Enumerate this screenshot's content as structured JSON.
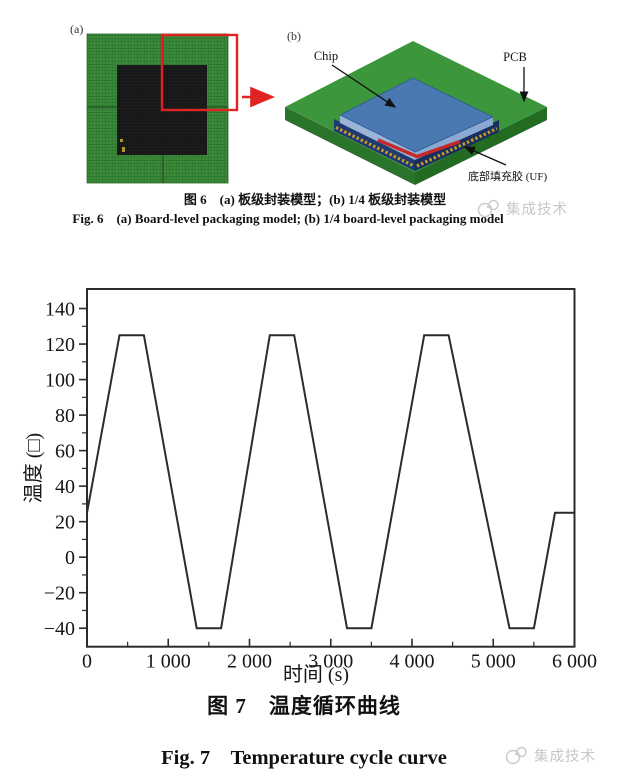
{
  "figure6": {
    "panel_a": {
      "label": "(a)"
    },
    "panel_b": {
      "label": "(b)",
      "chip_label": "Chip",
      "pcb_label": "PCB",
      "underfill_label": "底部填充胶 (UF)"
    },
    "caption_cn": "图 6　(a) 板级封装模型；(b) 1/4 板级封装模型",
    "caption_en": "Fig. 6　(a) Board-level packaging model; (b) 1/4 board-level packaging model"
  },
  "figure7": {
    "caption_cn": "图 7　温度循环曲线",
    "caption_en": "Fig. 7　Temperature cycle curve"
  },
  "watermark": {
    "text": "集成技术",
    "color": "#c7c7c7"
  },
  "colors": {
    "mesh_green": "#3b8b3b",
    "pcb_green_top": "#3c963c",
    "pcb_green_left": "#2b722b",
    "pcb_green_right": "#236b23",
    "die_black": "#171717",
    "chip_blue": "#4a78b0",
    "chip_blue_light": "#9ab3d8",
    "substrate_navy": "#1e3a6e",
    "solder_gold": "#c99b2a",
    "underfill_red": "#c62828",
    "roi_red": "#e02222",
    "ink": "#2b2b2b"
  },
  "chart_data": {
    "type": "line",
    "title": "",
    "xlabel": "时间 (s)",
    "ylabel": "温度 (□)",
    "xlim": [
      0,
      6000
    ],
    "ylim": [
      -50.4,
      151
    ],
    "grid": false,
    "legend": "none",
    "x_major_ticks": [
      0,
      1000,
      2000,
      3000,
      4000,
      5000,
      6000
    ],
    "x_major_labels": [
      "0",
      "1 000",
      "2 000",
      "3 000",
      "4 000",
      "5 000",
      "6 000"
    ],
    "x_minor_ticks": [
      500,
      1500,
      2500,
      3500,
      4500,
      5500
    ],
    "y_major_ticks": [
      140,
      120,
      100,
      80,
      60,
      40,
      20,
      0,
      -20,
      -40
    ],
    "y_major_labels": [
      "140",
      "120",
      "100",
      "80",
      "60",
      "40",
      "20",
      "0",
      "−20",
      "−40"
    ],
    "y_minor_ticks": [
      130,
      110,
      90,
      70,
      50,
      30,
      10,
      -10,
      -30
    ],
    "line_color": "#2b2b2b",
    "series": [
      {
        "name": "temperature-cycle",
        "points": [
          [
            0,
            25
          ],
          [
            400,
            125
          ],
          [
            700,
            125
          ],
          [
            1350,
            -40
          ],
          [
            1650,
            -40
          ],
          [
            2250,
            125
          ],
          [
            2550,
            125
          ],
          [
            3200,
            -40
          ],
          [
            3500,
            -40
          ],
          [
            4150,
            125
          ],
          [
            4450,
            125
          ],
          [
            5200,
            -40
          ],
          [
            5500,
            -40
          ],
          [
            5760,
            25
          ],
          [
            6000,
            25
          ]
        ]
      }
    ]
  }
}
